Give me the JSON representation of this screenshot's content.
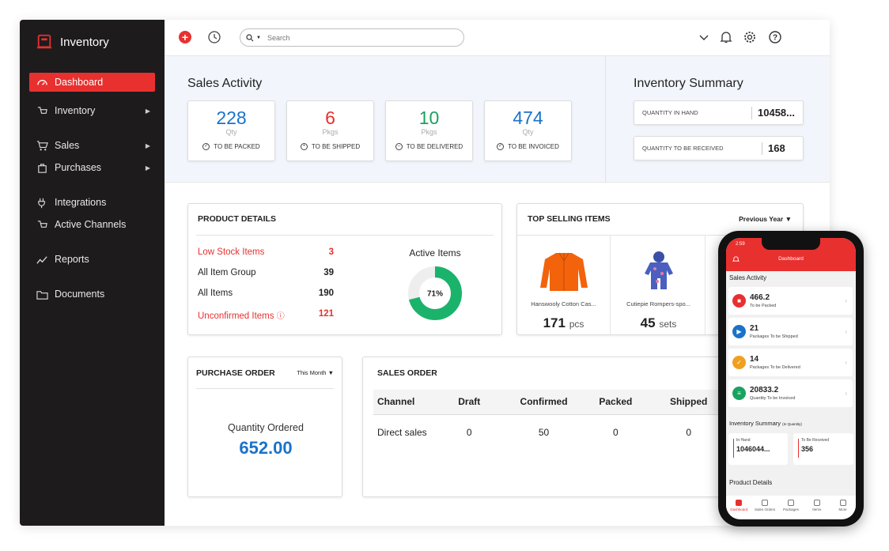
{
  "sidebar": {
    "brand": "Inventory",
    "items": [
      {
        "label": "Dashboard",
        "icon": "dashboard-icon",
        "active": true
      },
      {
        "label": "Inventory",
        "icon": "box-icon"
      },
      {
        "label": "Sales",
        "icon": "cart-icon"
      },
      {
        "label": "Purchases",
        "icon": "bag-icon"
      },
      {
        "label": "Integrations",
        "icon": "plug-icon"
      },
      {
        "label": "Active Channels",
        "icon": "channels-icon"
      },
      {
        "label": "Reports",
        "icon": "chart-icon"
      },
      {
        "label": "Documents",
        "icon": "folder-icon"
      }
    ]
  },
  "topbar": {
    "search_placeholder": "Search"
  },
  "sales_activity": {
    "title": "Sales Activity",
    "cards": [
      {
        "value": "228",
        "unit": "Qty",
        "label": "TO BE PACKED",
        "color": "#1a73c9"
      },
      {
        "value": "6",
        "unit": "Pkgs",
        "label": "TO BE SHIPPED",
        "color": "#e8302f"
      },
      {
        "value": "10",
        "unit": "Pkgs",
        "label": "TO BE DELIVERED",
        "color": "#1aa260"
      },
      {
        "value": "474",
        "unit": "Qty",
        "label": "TO BE INVOICED",
        "color": "#1a73c9"
      }
    ]
  },
  "inventory_summary": {
    "title": "Inventory Summary",
    "rows": [
      {
        "label": "QUANTITY IN HAND",
        "value": "10458..."
      },
      {
        "label": "QUANTITY TO BE RECEIVED",
        "value": "168"
      }
    ]
  },
  "product_details": {
    "title": "PRODUCT DETAILS",
    "rows": [
      {
        "label": "Low Stock Items",
        "value": "3",
        "red": true
      },
      {
        "label": "All Item Group",
        "value": "39"
      },
      {
        "label": "All Items",
        "value": "190"
      },
      {
        "label": "Unconfirmed Items",
        "value": "121",
        "red": true
      }
    ],
    "active_items_title": "Active Items",
    "active_items_percent": 71,
    "active_items_label": "71%"
  },
  "top_selling": {
    "title": "TOP SELLING ITEMS",
    "filter": "Previous Year",
    "items": [
      {
        "name": "Hanswooly Cotton Cas...",
        "count": "171",
        "unit": "pcs"
      },
      {
        "name": "Cutiepie Rompers-spo...",
        "count": "45",
        "unit": "sets"
      }
    ]
  },
  "purchase_order": {
    "title": "PURCHASE ORDER",
    "filter": "This Month",
    "label": "Quantity Ordered",
    "value": "652.00"
  },
  "sales_order": {
    "title": "SALES ORDER",
    "columns": [
      "Channel",
      "Draft",
      "Confirmed",
      "Packed",
      "Shipped"
    ],
    "rows": [
      [
        "Direct sales",
        "0",
        "50",
        "0",
        "0"
      ]
    ]
  },
  "phone": {
    "time": "2:59",
    "header": "Dashboard",
    "sales_title": "Sales Activity",
    "cards": [
      {
        "value": "466.2",
        "label": "To be Packed",
        "color": "#e8302f"
      },
      {
        "value": "21",
        "label": "Packages To be Shipped",
        "color": "#1a73c9"
      },
      {
        "value": "14",
        "label": "Packages To be Delivered",
        "color": "#f0a020"
      },
      {
        "value": "20833.2",
        "label": "Quantity To be Invoiced",
        "color": "#1aa260"
      }
    ],
    "inv_title": "Inventory Summary",
    "inv_sub": "(In Quantity)",
    "in_hand_label": "In Hand",
    "in_hand_value": "1046044...",
    "to_receive_label": "To Be Received",
    "to_receive_value": "356",
    "product_title": "Product Details",
    "nav": [
      "Dashboard",
      "Sales Orders",
      "Packages",
      "Items",
      "More"
    ]
  }
}
